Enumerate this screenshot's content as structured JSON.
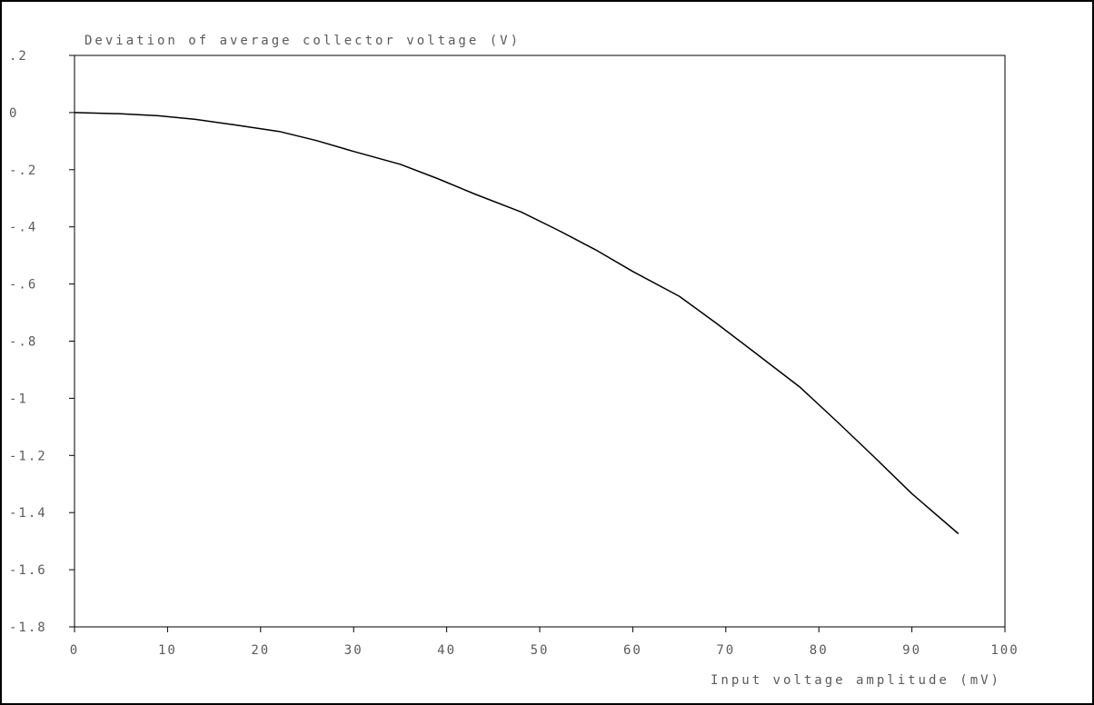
{
  "chart_data": {
    "type": "line",
    "title": "",
    "ylabel": "Deviation of average collector voltage (V)",
    "xlabel": "Input voltage amplitude (mV)",
    "xlim": [
      0,
      100
    ],
    "ylim": [
      -1.8,
      0.2
    ],
    "x_ticks": [
      {
        "value": 0,
        "label": "0"
      },
      {
        "value": 10,
        "label": "10"
      },
      {
        "value": 20,
        "label": "20"
      },
      {
        "value": 30,
        "label": "30"
      },
      {
        "value": 40,
        "label": "40"
      },
      {
        "value": 50,
        "label": "50"
      },
      {
        "value": 60,
        "label": "60"
      },
      {
        "value": 70,
        "label": "70"
      },
      {
        "value": 80,
        "label": "80"
      },
      {
        "value": 90,
        "label": "90"
      },
      {
        "value": 100,
        "label": "100"
      }
    ],
    "y_ticks": [
      {
        "value": 0.2,
        "label": ".2"
      },
      {
        "value": 0,
        "label": "0"
      },
      {
        "value": -0.2,
        "label": "-.2"
      },
      {
        "value": -0.4,
        "label": "-.4"
      },
      {
        "value": -0.6,
        "label": "-.6"
      },
      {
        "value": -0.8,
        "label": "-.8"
      },
      {
        "value": -1.0,
        "label": "-1"
      },
      {
        "value": -1.2,
        "label": "-1.2"
      },
      {
        "value": -1.4,
        "label": "-1.4"
      },
      {
        "value": -1.6,
        "label": "-1.6"
      },
      {
        "value": -1.8,
        "label": "-1.8"
      }
    ],
    "grid": false,
    "legend": "none",
    "series": [
      {
        "color": "#000000",
        "x": [
          0,
          5,
          9,
          13,
          17,
          22,
          26,
          30,
          35,
          39,
          43,
          48,
          52,
          56,
          60,
          65,
          69,
          73,
          78,
          82,
          86,
          90,
          95
        ],
        "y": [
          0,
          -0.004,
          -0.011,
          -0.024,
          -0.042,
          -0.066,
          -0.098,
          -0.136,
          -0.181,
          -0.231,
          -0.285,
          -0.348,
          -0.412,
          -0.48,
          -0.556,
          -0.643,
          -0.738,
          -0.837,
          -0.962,
          -1.083,
          -1.207,
          -1.334,
          -1.474
        ]
      }
    ]
  }
}
